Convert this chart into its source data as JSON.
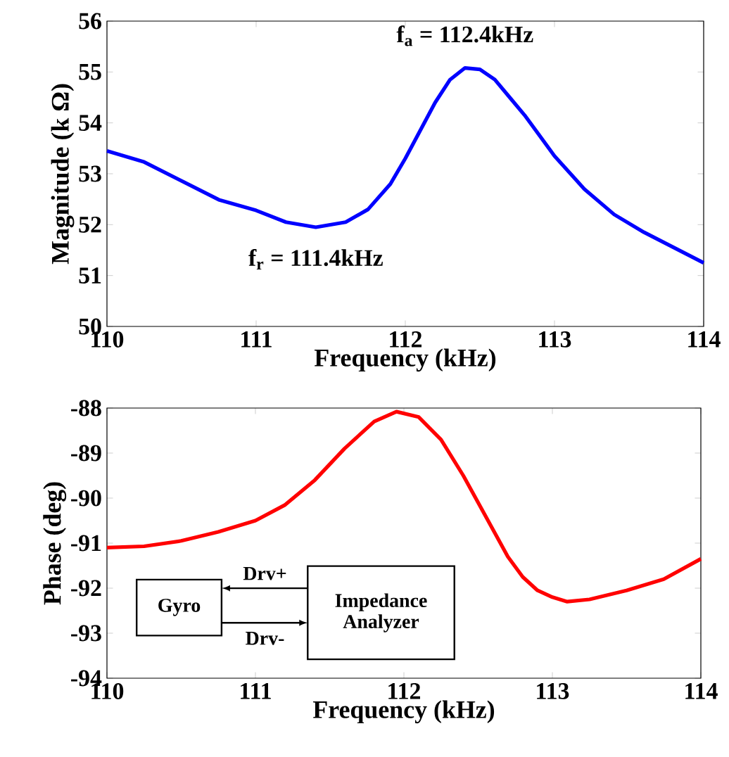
{
  "chart_data": [
    {
      "type": "line",
      "xlabel": "Frequency (kHz)",
      "ylabel": "Magnitude (k Ω)",
      "x": [
        110,
        110.25,
        110.5,
        110.75,
        111,
        111.2,
        111.4,
        111.6,
        111.75,
        111.9,
        112,
        112.1,
        112.2,
        112.3,
        112.4,
        112.5,
        112.6,
        112.7,
        112.8,
        113,
        113.2,
        113.4,
        113.6,
        113.8,
        114
      ],
      "series": [
        {
          "color": "#0000ff",
          "values": [
            53.45,
            53.23,
            52.86,
            52.49,
            52.28,
            52.05,
            51.95,
            52.05,
            52.3,
            52.8,
            53.3,
            53.85,
            54.4,
            54.85,
            55.08,
            55.05,
            54.85,
            54.5,
            54.15,
            53.35,
            52.7,
            52.2,
            51.85,
            51.55,
            51.25
          ]
        }
      ],
      "xlim": [
        110,
        114
      ],
      "ylim": [
        50,
        56
      ],
      "xticks": [
        110,
        111,
        112,
        113,
        114
      ],
      "yticks": [
        50,
        51,
        52,
        53,
        54,
        55,
        56
      ],
      "annotations": [
        {
          "text": "f$_{a}$ = 112.4kHz",
          "x": 112.4,
          "y": 55.08
        },
        {
          "text": "f$_{r}$ = 111.4kHz",
          "x": 111.4,
          "y": 51.95
        }
      ]
    },
    {
      "type": "line",
      "xlabel": "Frequency (kHz)",
      "ylabel": "Phase (deg)",
      "x": [
        110,
        110.25,
        110.5,
        110.75,
        111,
        111.2,
        111.4,
        111.6,
        111.8,
        111.95,
        112.1,
        112.25,
        112.4,
        112.5,
        112.6,
        112.7,
        112.8,
        112.9,
        113,
        113.1,
        113.25,
        113.5,
        113.75,
        114
      ],
      "series": [
        {
          "color": "#ff0000",
          "values": [
            -91.1,
            -91.07,
            -90.95,
            -90.75,
            -90.5,
            -90.15,
            -89.6,
            -88.9,
            -88.3,
            -88.08,
            -88.2,
            -88.7,
            -89.5,
            -90.1,
            -90.7,
            -91.3,
            -91.75,
            -92.05,
            -92.2,
            -92.3,
            -92.25,
            -92.05,
            -91.8,
            -91.35
          ]
        }
      ],
      "xlim": [
        110,
        114
      ],
      "ylim": [
        -94,
        -88
      ],
      "xticks": [
        110,
        111,
        112,
        113,
        114
      ],
      "yticks": [
        -94,
        -93,
        -92,
        -91,
        -90,
        -89,
        -88
      ],
      "annotations": [
        "Gyro",
        "Impedance Analyzer",
        "Drv+",
        "Drv-"
      ]
    }
  ]
}
